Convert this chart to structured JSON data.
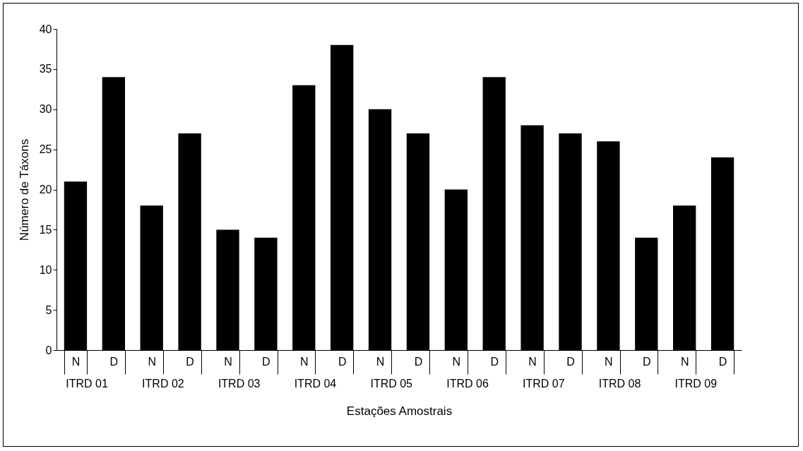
{
  "chart_data": {
    "type": "bar",
    "xlabel": "Estações Amostrais",
    "ylabel": "Número de Táxons",
    "categories": [
      "N",
      "D",
      "N",
      "D",
      "N",
      "D",
      "N",
      "D",
      "N",
      "D",
      "N",
      "D",
      "N",
      "D",
      "N",
      "D",
      "N",
      "D"
    ],
    "values": [
      21,
      34,
      18,
      27,
      15,
      14,
      33,
      38,
      30,
      27,
      20,
      34,
      28,
      27,
      26,
      14,
      18,
      24
    ],
    "color": "#000000",
    "ylim": [
      0,
      40
    ],
    "yticks": [
      0,
      5,
      10,
      15,
      20,
      25,
      30,
      35,
      40
    ],
    "grid": false,
    "annotations": [
      "ITRD 01",
      "ITRD 02",
      "ITRD 03",
      "ITRD 04",
      "ITRD 05",
      "ITRD 06",
      "ITRD 07",
      "ITRD 08",
      "ITRD 09"
    ]
  }
}
